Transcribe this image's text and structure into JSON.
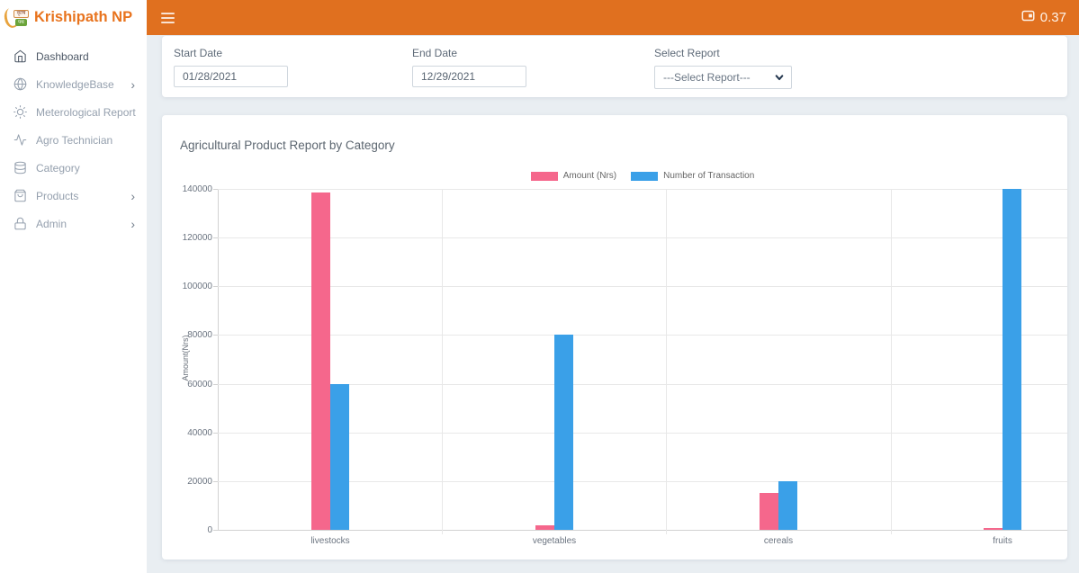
{
  "app": {
    "brand": "Krishipath NP",
    "logo_line1": "कृषि",
    "logo_line2": "पथ",
    "balance": "0.37",
    "topbar_color": "#e0701f",
    "brand_color": "#e8731d"
  },
  "sidebar": {
    "items": [
      {
        "label": "Dashboard",
        "icon": "home",
        "active": true,
        "has_submenu": false
      },
      {
        "label": "KnowledgeBase",
        "icon": "globe",
        "active": false,
        "has_submenu": true
      },
      {
        "label": "Meterological Report",
        "icon": "sun",
        "active": false,
        "has_submenu": false
      },
      {
        "label": "Agro Technician",
        "icon": "activity",
        "active": false,
        "has_submenu": false
      },
      {
        "label": "Category",
        "icon": "database",
        "active": false,
        "has_submenu": false
      },
      {
        "label": "Products",
        "icon": "shopping-bag",
        "active": false,
        "has_submenu": true
      },
      {
        "label": "Admin",
        "icon": "lock",
        "active": false,
        "has_submenu": true
      }
    ]
  },
  "filters": {
    "start_date": {
      "label": "Start Date",
      "value": "01/28/2021"
    },
    "end_date": {
      "label": "End Date",
      "value": "12/29/2021"
    },
    "report": {
      "label": "Select Report",
      "value": "---Select Report---"
    }
  },
  "chart_data": {
    "type": "bar",
    "title": "Agricultural Product Report by Category",
    "categories": [
      "livestocks",
      "vegetables",
      "cereals",
      "fruits"
    ],
    "series": [
      {
        "name": "Amount (Nrs)",
        "color": "#f5678c",
        "values": [
          138500,
          2000,
          15000,
          800
        ]
      },
      {
        "name": "Number of Transaction",
        "color": "#3aa0e8",
        "values": [
          60000,
          80000,
          20000,
          140000
        ]
      }
    ],
    "xlabel": "",
    "ylabel": "Amount(Nrs)",
    "ylim": [
      0,
      140000
    ],
    "ytick_step": 20000,
    "legend_position": "top",
    "grid": true
  }
}
